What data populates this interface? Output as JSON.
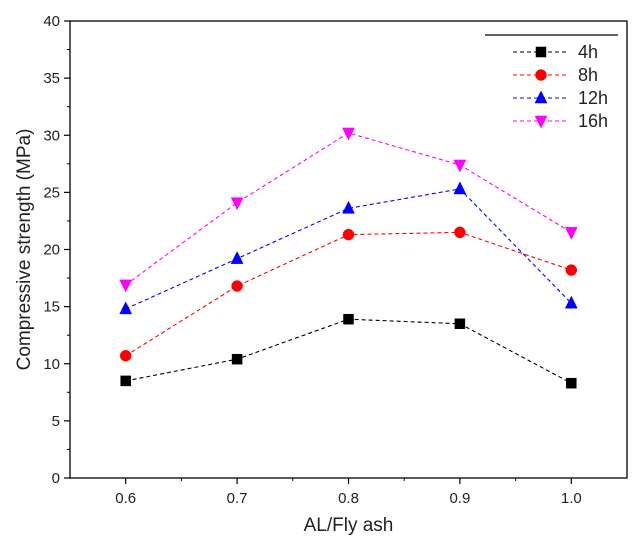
{
  "chart_data": {
    "type": "line",
    "title": "",
    "xlabel": "AL/Fly ash",
    "ylabel": "Compressive strength (MPa)",
    "x": [
      0.6,
      0.7,
      0.8,
      0.9,
      1.0
    ],
    "x_tick_labels": [
      "0.6",
      "0.7",
      "0.8",
      "0.9",
      "1.0"
    ],
    "xlim": [
      0.55,
      1.05
    ],
    "ylim": [
      0,
      40
    ],
    "y_ticks": [
      0,
      5,
      10,
      15,
      20,
      25,
      30,
      35,
      40
    ],
    "y_tick_labels": [
      "0",
      "5",
      "10",
      "15",
      "20",
      "25",
      "30",
      "35",
      "40"
    ],
    "grid": false,
    "legend_position": "top-right",
    "series": [
      {
        "name": "4h",
        "color": "#000000",
        "marker": "square",
        "values": [
          8.5,
          10.4,
          13.9,
          13.5,
          8.3
        ]
      },
      {
        "name": "8h",
        "color": "#ff0000",
        "marker": "circle",
        "values": [
          10.7,
          16.8,
          21.3,
          21.5,
          18.2
        ]
      },
      {
        "name": "12h",
        "color": "#0000ff",
        "marker": "triangle-up",
        "values": [
          14.8,
          19.2,
          23.6,
          25.3,
          15.3
        ]
      },
      {
        "name": "16h",
        "color": "#ff00ff",
        "marker": "triangle-down",
        "values": [
          16.9,
          24.1,
          30.2,
          27.4,
          21.5
        ]
      }
    ]
  }
}
